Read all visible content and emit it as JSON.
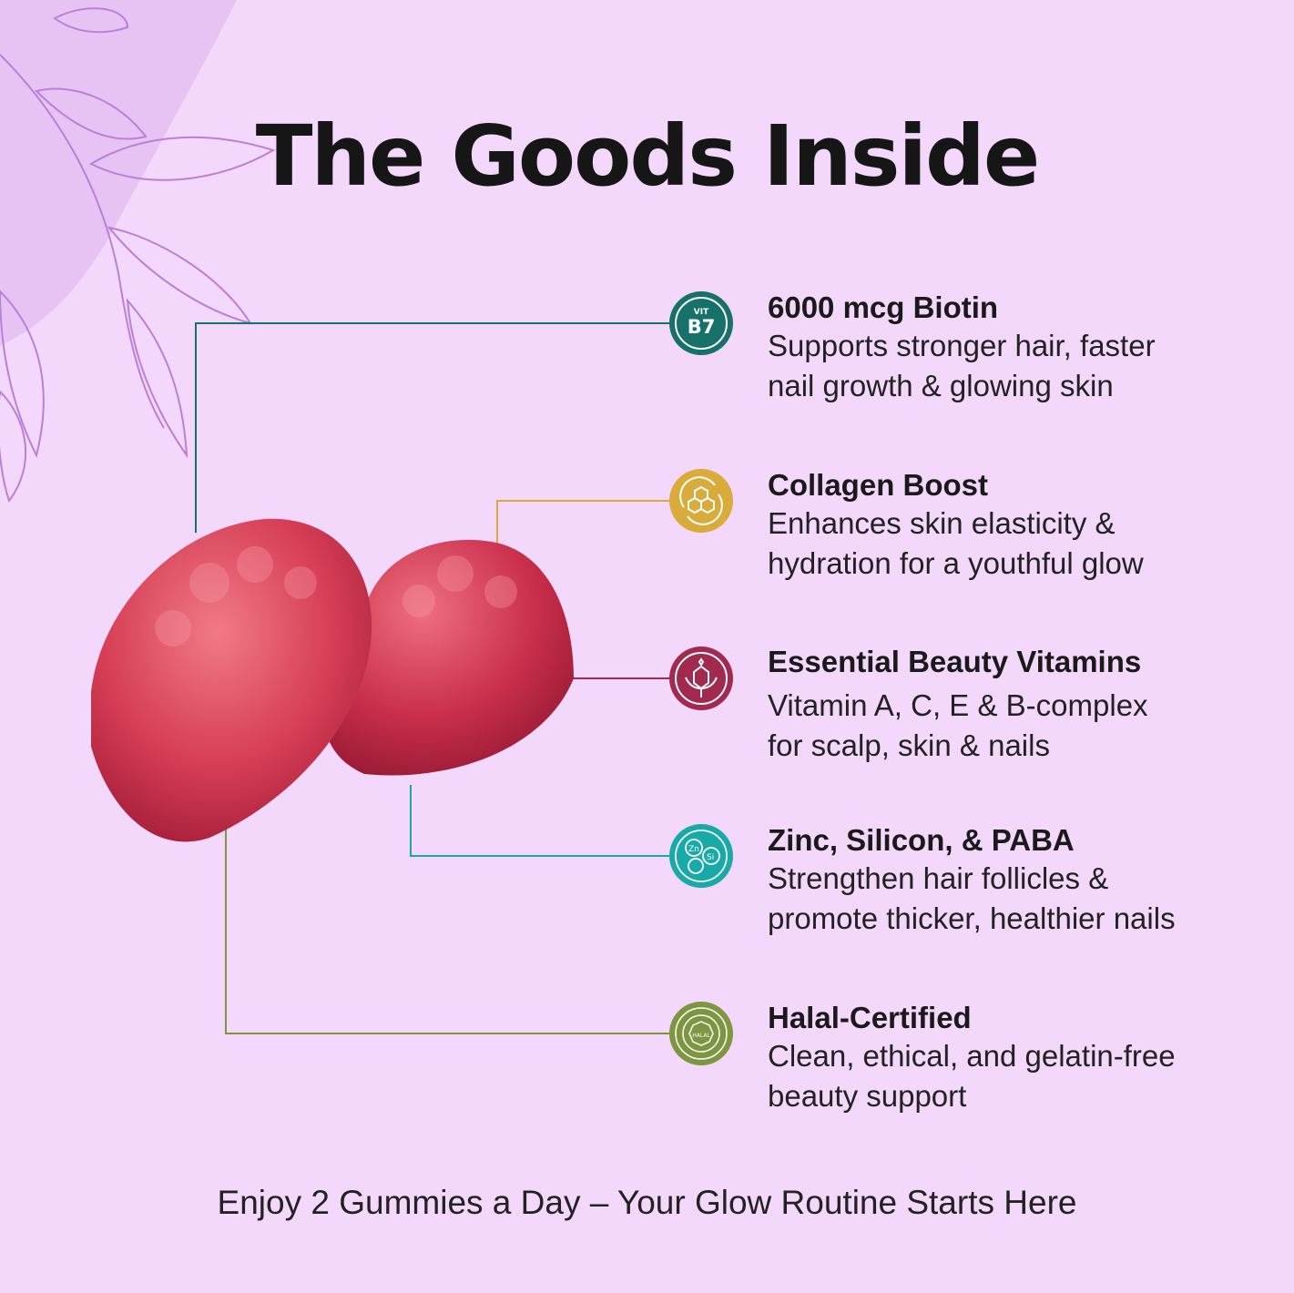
{
  "title": "The Goods Inside",
  "features": [
    {
      "title": "6000 mcg Biotin",
      "desc1": "Supports stronger hair, faster",
      "desc2": "nail growth & glowing skin",
      "icon": "vitamin-b7-icon",
      "icon_text_top": "VIT",
      "icon_text": "B7",
      "color": "#17716b"
    },
    {
      "title": "Collagen Boost",
      "desc1": "Enhances skin elasticity &",
      "desc2": "hydration for a youthful glow",
      "icon": "collagen-molecule-icon",
      "color": "#d8ab3a"
    },
    {
      "title": "Essential Beauty Vitamins",
      "desc1": "Vitamin A, C, E & B-complex",
      "desc2": "for scalp, skin & nails",
      "icon": "flower-icon",
      "color": "#a2294f"
    },
    {
      "title": "Zinc, Silicon, & PABA",
      "desc1": "Strengthen hair follicles &",
      "desc2": "promote thicker, healthier nails",
      "icon": "minerals-icon",
      "icon_text": "Zn",
      "icon_text2": "Si",
      "color": "#18aaa8"
    },
    {
      "title": "Halal-Certified",
      "desc1": "Clean, ethical, and gelatin-free",
      "desc2": "beauty support",
      "icon": "halal-seal-icon",
      "icon_text": "HALAL",
      "color": "#7f9640"
    }
  ],
  "footer": "Enjoy 2 Gummies a Day – Your Glow Routine Starts Here",
  "background": "#f3d8fb"
}
